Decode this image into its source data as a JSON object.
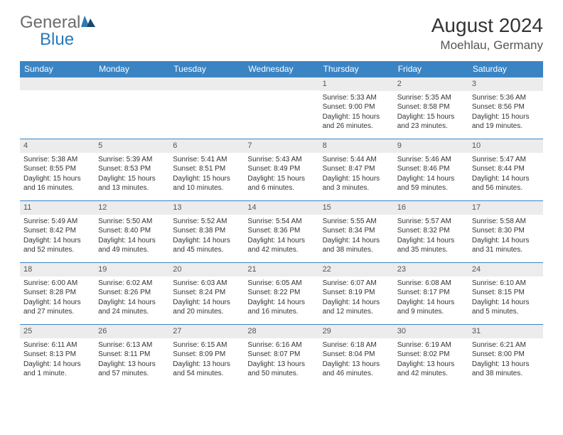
{
  "logo": {
    "text1": "General",
    "text2": "Blue",
    "text1_color": "#6b6b6b",
    "text2_color": "#2a7ab9",
    "icon_color": "#2a7ab9"
  },
  "title": "August 2024",
  "location": "Moehlau, Germany",
  "header_bg": "#3b84c4",
  "daynum_bg": "#ececec",
  "border_color": "#3b84c4",
  "background_color": "#ffffff",
  "fontsize_title": 28,
  "fontsize_location": 17,
  "fontsize_dayname": 12,
  "fontsize_body": 10,
  "day_names": [
    "Sunday",
    "Monday",
    "Tuesday",
    "Wednesday",
    "Thursday",
    "Friday",
    "Saturday"
  ],
  "weeks": [
    [
      {
        "day": "",
        "sunrise": "",
        "sunset": "",
        "daylight": ""
      },
      {
        "day": "",
        "sunrise": "",
        "sunset": "",
        "daylight": ""
      },
      {
        "day": "",
        "sunrise": "",
        "sunset": "",
        "daylight": ""
      },
      {
        "day": "",
        "sunrise": "",
        "sunset": "",
        "daylight": ""
      },
      {
        "day": "1",
        "sunrise": "Sunrise: 5:33 AM",
        "sunset": "Sunset: 9:00 PM",
        "daylight": "Daylight: 15 hours and 26 minutes."
      },
      {
        "day": "2",
        "sunrise": "Sunrise: 5:35 AM",
        "sunset": "Sunset: 8:58 PM",
        "daylight": "Daylight: 15 hours and 23 minutes."
      },
      {
        "day": "3",
        "sunrise": "Sunrise: 5:36 AM",
        "sunset": "Sunset: 8:56 PM",
        "daylight": "Daylight: 15 hours and 19 minutes."
      }
    ],
    [
      {
        "day": "4",
        "sunrise": "Sunrise: 5:38 AM",
        "sunset": "Sunset: 8:55 PM",
        "daylight": "Daylight: 15 hours and 16 minutes."
      },
      {
        "day": "5",
        "sunrise": "Sunrise: 5:39 AM",
        "sunset": "Sunset: 8:53 PM",
        "daylight": "Daylight: 15 hours and 13 minutes."
      },
      {
        "day": "6",
        "sunrise": "Sunrise: 5:41 AM",
        "sunset": "Sunset: 8:51 PM",
        "daylight": "Daylight: 15 hours and 10 minutes."
      },
      {
        "day": "7",
        "sunrise": "Sunrise: 5:43 AM",
        "sunset": "Sunset: 8:49 PM",
        "daylight": "Daylight: 15 hours and 6 minutes."
      },
      {
        "day": "8",
        "sunrise": "Sunrise: 5:44 AM",
        "sunset": "Sunset: 8:47 PM",
        "daylight": "Daylight: 15 hours and 3 minutes."
      },
      {
        "day": "9",
        "sunrise": "Sunrise: 5:46 AM",
        "sunset": "Sunset: 8:46 PM",
        "daylight": "Daylight: 14 hours and 59 minutes."
      },
      {
        "day": "10",
        "sunrise": "Sunrise: 5:47 AM",
        "sunset": "Sunset: 8:44 PM",
        "daylight": "Daylight: 14 hours and 56 minutes."
      }
    ],
    [
      {
        "day": "11",
        "sunrise": "Sunrise: 5:49 AM",
        "sunset": "Sunset: 8:42 PM",
        "daylight": "Daylight: 14 hours and 52 minutes."
      },
      {
        "day": "12",
        "sunrise": "Sunrise: 5:50 AM",
        "sunset": "Sunset: 8:40 PM",
        "daylight": "Daylight: 14 hours and 49 minutes."
      },
      {
        "day": "13",
        "sunrise": "Sunrise: 5:52 AM",
        "sunset": "Sunset: 8:38 PM",
        "daylight": "Daylight: 14 hours and 45 minutes."
      },
      {
        "day": "14",
        "sunrise": "Sunrise: 5:54 AM",
        "sunset": "Sunset: 8:36 PM",
        "daylight": "Daylight: 14 hours and 42 minutes."
      },
      {
        "day": "15",
        "sunrise": "Sunrise: 5:55 AM",
        "sunset": "Sunset: 8:34 PM",
        "daylight": "Daylight: 14 hours and 38 minutes."
      },
      {
        "day": "16",
        "sunrise": "Sunrise: 5:57 AM",
        "sunset": "Sunset: 8:32 PM",
        "daylight": "Daylight: 14 hours and 35 minutes."
      },
      {
        "day": "17",
        "sunrise": "Sunrise: 5:58 AM",
        "sunset": "Sunset: 8:30 PM",
        "daylight": "Daylight: 14 hours and 31 minutes."
      }
    ],
    [
      {
        "day": "18",
        "sunrise": "Sunrise: 6:00 AM",
        "sunset": "Sunset: 8:28 PM",
        "daylight": "Daylight: 14 hours and 27 minutes."
      },
      {
        "day": "19",
        "sunrise": "Sunrise: 6:02 AM",
        "sunset": "Sunset: 8:26 PM",
        "daylight": "Daylight: 14 hours and 24 minutes."
      },
      {
        "day": "20",
        "sunrise": "Sunrise: 6:03 AM",
        "sunset": "Sunset: 8:24 PM",
        "daylight": "Daylight: 14 hours and 20 minutes."
      },
      {
        "day": "21",
        "sunrise": "Sunrise: 6:05 AM",
        "sunset": "Sunset: 8:22 PM",
        "daylight": "Daylight: 14 hours and 16 minutes."
      },
      {
        "day": "22",
        "sunrise": "Sunrise: 6:07 AM",
        "sunset": "Sunset: 8:19 PM",
        "daylight": "Daylight: 14 hours and 12 minutes."
      },
      {
        "day": "23",
        "sunrise": "Sunrise: 6:08 AM",
        "sunset": "Sunset: 8:17 PM",
        "daylight": "Daylight: 14 hours and 9 minutes."
      },
      {
        "day": "24",
        "sunrise": "Sunrise: 6:10 AM",
        "sunset": "Sunset: 8:15 PM",
        "daylight": "Daylight: 14 hours and 5 minutes."
      }
    ],
    [
      {
        "day": "25",
        "sunrise": "Sunrise: 6:11 AM",
        "sunset": "Sunset: 8:13 PM",
        "daylight": "Daylight: 14 hours and 1 minute."
      },
      {
        "day": "26",
        "sunrise": "Sunrise: 6:13 AM",
        "sunset": "Sunset: 8:11 PM",
        "daylight": "Daylight: 13 hours and 57 minutes."
      },
      {
        "day": "27",
        "sunrise": "Sunrise: 6:15 AM",
        "sunset": "Sunset: 8:09 PM",
        "daylight": "Daylight: 13 hours and 54 minutes."
      },
      {
        "day": "28",
        "sunrise": "Sunrise: 6:16 AM",
        "sunset": "Sunset: 8:07 PM",
        "daylight": "Daylight: 13 hours and 50 minutes."
      },
      {
        "day": "29",
        "sunrise": "Sunrise: 6:18 AM",
        "sunset": "Sunset: 8:04 PM",
        "daylight": "Daylight: 13 hours and 46 minutes."
      },
      {
        "day": "30",
        "sunrise": "Sunrise: 6:19 AM",
        "sunset": "Sunset: 8:02 PM",
        "daylight": "Daylight: 13 hours and 42 minutes."
      },
      {
        "day": "31",
        "sunrise": "Sunrise: 6:21 AM",
        "sunset": "Sunset: 8:00 PM",
        "daylight": "Daylight: 13 hours and 38 minutes."
      }
    ]
  ]
}
